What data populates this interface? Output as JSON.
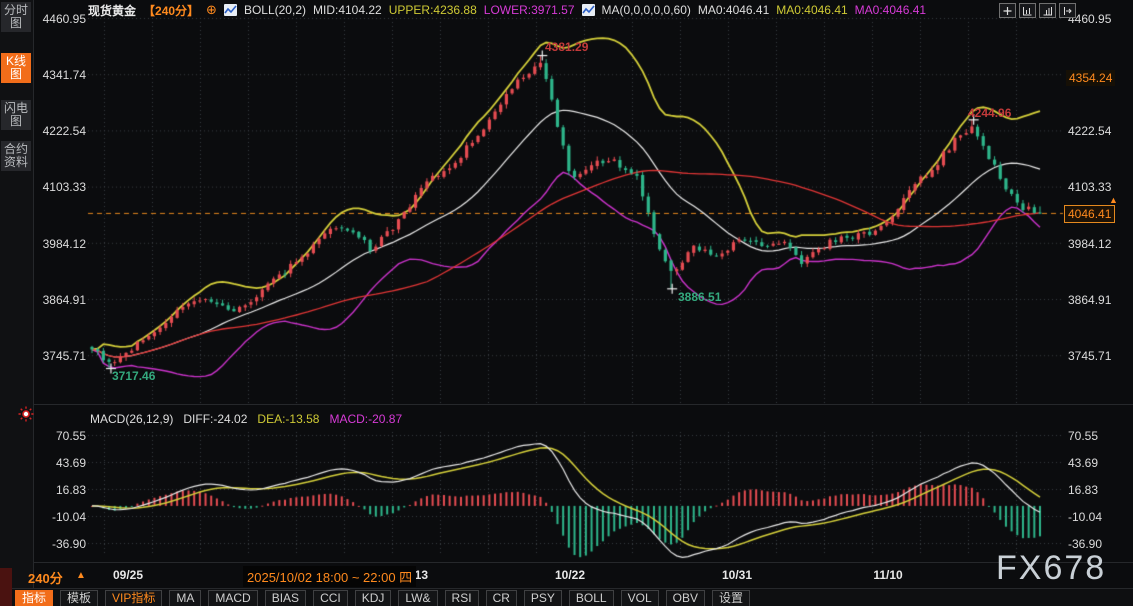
{
  "header": {
    "symbol": "现货黄金",
    "period": "【240分】",
    "refresh": "⊕",
    "boll": {
      "name": "BOLL(20,2)",
      "mid": "MID:4104.22",
      "upper": "UPPER:4236.88",
      "lower": "LOWER:3971.57"
    },
    "ma": {
      "name": "MA(0,0,0,0,0,60)",
      "m1": "MA0:4046.41",
      "m2": "MA0:4046.41",
      "m3": "MA0:4046.41"
    }
  },
  "sidebar": {
    "items": [
      {
        "label": "分时图"
      },
      {
        "label": "K线图"
      },
      {
        "label": "闪电图"
      },
      {
        "label": "合约资料"
      }
    ]
  },
  "axes": {
    "price_left": [
      "4460.95",
      "4341.74",
      "4222.54",
      "4103.33",
      "3984.12",
      "3864.91",
      "3745.71"
    ],
    "price_right": [
      "4460.95",
      "4222.54",
      "4103.33",
      "3984.12",
      "3864.91",
      "3745.71"
    ],
    "high_badge": "4354.24",
    "current_badge": "4046.41",
    "current_marker": "▲",
    "macd": [
      "70.55",
      "43.69",
      "16.83",
      "-10.04",
      "-36.90"
    ]
  },
  "macd_header": {
    "name": "MACD(26,12,9)",
    "diff": "DIFF:-24.02",
    "dea": "DEA:-13.58",
    "macd": "MACD:-20.87"
  },
  "annotations": {
    "high1": "4381.29",
    "low1": "3717.46",
    "low2": "3886.51",
    "high2": "4244.96"
  },
  "xaxis": {
    "period": "240分",
    "arrow": "▲",
    "date_label": "2025/10/02 18:00 ~ 22:00 四",
    "ticks": [
      "09/25",
      "10/13",
      "10/22",
      "10/31",
      "11/10"
    ]
  },
  "watermark": "FX678",
  "tabbar": {
    "items": [
      {
        "label": "指标"
      },
      {
        "label": "模板"
      },
      {
        "label": "VIP指标"
      },
      {
        "label": "MA"
      },
      {
        "label": "MACD"
      },
      {
        "label": "BIAS"
      },
      {
        "label": "CCI"
      },
      {
        "label": "KDJ"
      },
      {
        "label": "LW&"
      },
      {
        "label": "RSI"
      },
      {
        "label": "CR"
      },
      {
        "label": "PSY"
      },
      {
        "label": "BOLL"
      },
      {
        "label": "VOL"
      },
      {
        "label": "OBV"
      },
      {
        "label": "设置"
      }
    ]
  },
  "theme": {
    "accent": "#f26d1a",
    "text_orange": "#ff8a1e",
    "background": "#0b0c0e"
  },
  "chart_data": {
    "type": "candlestick+macd",
    "symbol": "现货黄金",
    "period_minutes": 240,
    "price_axis": [
      4460.95,
      4341.74,
      4222.54,
      4103.33,
      3984.12,
      3864.91,
      3745.71
    ],
    "macd_axis": [
      70.55,
      43.69,
      16.83,
      -10.04,
      -36.9
    ],
    "x_ticks": [
      "09/25",
      "10/13",
      "10/22",
      "10/31",
      "11/10"
    ],
    "indicators": {
      "boll": {
        "params": "20,2",
        "mid": 4104.22,
        "upper": 4236.88,
        "lower": 3971.57
      },
      "ma": {
        "params": "0,0,0,0,0,60",
        "ma0": 4046.41
      },
      "macd": {
        "params": "26,12,9",
        "diff": -24.02,
        "dea": -13.58,
        "macd": -20.87
      }
    },
    "annotations": {
      "high1": 4381.29,
      "low1": 3717.46,
      "low2": 3886.51,
      "high2": 4244.96,
      "session_high": 4354.24,
      "last_price": 4046.41
    },
    "specials": [
      {
        "t": 0.02,
        "kind": "low",
        "price": 3717.46
      },
      {
        "t": 0.475,
        "kind": "high",
        "price": 4381.29
      },
      {
        "t": 0.612,
        "kind": "low",
        "price": 3886.51
      },
      {
        "t": 0.93,
        "kind": "high",
        "price": 4244.96
      }
    ],
    "path_anchors": [
      [
        0.0,
        3762
      ],
      [
        0.012,
        3740
      ],
      [
        0.025,
        3728
      ],
      [
        0.045,
        3765
      ],
      [
        0.07,
        3800
      ],
      [
        0.095,
        3845
      ],
      [
        0.12,
        3862
      ],
      [
        0.15,
        3842
      ],
      [
        0.175,
        3872
      ],
      [
        0.2,
        3918
      ],
      [
        0.225,
        3962
      ],
      [
        0.25,
        4020
      ],
      [
        0.275,
        4005
      ],
      [
        0.295,
        3970
      ],
      [
        0.315,
        4010
      ],
      [
        0.335,
        4060
      ],
      [
        0.355,
        4120
      ],
      [
        0.375,
        4135
      ],
      [
        0.395,
        4185
      ],
      [
        0.415,
        4230
      ],
      [
        0.435,
        4290
      ],
      [
        0.455,
        4340
      ],
      [
        0.475,
        4370
      ],
      [
        0.49,
        4240
      ],
      [
        0.505,
        4120
      ],
      [
        0.525,
        4150
      ],
      [
        0.55,
        4160
      ],
      [
        0.575,
        4120
      ],
      [
        0.595,
        3990
      ],
      [
        0.612,
        3915
      ],
      [
        0.635,
        3975
      ],
      [
        0.66,
        3955
      ],
      [
        0.685,
        3990
      ],
      [
        0.71,
        3980
      ],
      [
        0.73,
        3990
      ],
      [
        0.75,
        3940
      ],
      [
        0.78,
        3990
      ],
      [
        0.81,
        4000
      ],
      [
        0.835,
        4015
      ],
      [
        0.85,
        4060
      ],
      [
        0.87,
        4110
      ],
      [
        0.89,
        4150
      ],
      [
        0.91,
        4200
      ],
      [
        0.93,
        4230
      ],
      [
        0.95,
        4150
      ],
      [
        0.965,
        4100
      ],
      [
        0.98,
        4060
      ],
      [
        1.0,
        4046.41
      ]
    ],
    "num_candles": 168,
    "seed": 9,
    "colors": {
      "up": "#e64c52",
      "down": "#2eb68b",
      "boll_mid": "#eaeaea",
      "boll_up": "#d4cf3a",
      "boll_low": "#cc33cc",
      "ma60": "#e23636",
      "price_line": "#e5891e",
      "grid": "#3a3d42",
      "hist_pos": "#e64c52",
      "hist_neg": "#2eb68b",
      "diff": "#e8e8e8",
      "dea": "#d4cf3a",
      "marker": "#f0f0f0"
    }
  }
}
